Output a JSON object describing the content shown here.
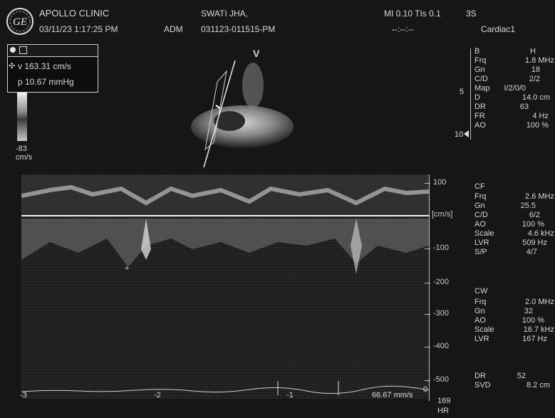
{
  "header": {
    "clinic": "APOLLO CLINIC",
    "datetime": "03/11/23 1:17:25 PM",
    "operator": "ADM",
    "patient_name": "SWATI JHA,",
    "patient_id": "031123-011515-PM",
    "mi_tis": "MI 0.10  TIs 0.1",
    "probe": "3S",
    "dashes": "--:--:--",
    "preset": "Cardiac1"
  },
  "measurement": {
    "velocity": "v  163.31 cm/s",
    "pressure": "p 10.67 mmHg"
  },
  "color_bar": {
    "value": "-83",
    "unit": "cm/s"
  },
  "image_marker": "V",
  "b_mode": {
    "header_b": "B",
    "header_h": "H",
    "rows": [
      {
        "k": "Frq",
        "v": "1.8 MHz"
      },
      {
        "k": "Gn",
        "v": "18"
      },
      {
        "k": "C/D",
        "v": "2/2"
      },
      {
        "k": "Map",
        "v": "I/2/0/0"
      },
      {
        "k": "D",
        "v": "14.0 cm"
      },
      {
        "k": "DR",
        "v": "63"
      },
      {
        "k": "FR",
        "v": "4 Hz"
      },
      {
        "k": "AO",
        "v": "100 %"
      }
    ],
    "depth_5": "5",
    "depth_10": "10"
  },
  "cf": {
    "title": "CF",
    "rows": [
      {
        "k": "Frq",
        "v": "2.6 MHz"
      },
      {
        "k": "Gn",
        "v": "25.5"
      },
      {
        "k": "C/D",
        "v": "6/2"
      },
      {
        "k": "AO",
        "v": "100 %"
      },
      {
        "k": "Scale",
        "v": "4.6 kHz"
      },
      {
        "k": "LVR",
        "v": "509 Hz"
      },
      {
        "k": "S/P",
        "v": "4/7"
      }
    ]
  },
  "cw": {
    "title": "CW",
    "rows": [
      {
        "k": "Frq",
        "v": "2.0 MHz"
      },
      {
        "k": "Gn",
        "v": "32"
      },
      {
        "k": "AO",
        "v": "100 %"
      },
      {
        "k": "Scale",
        "v": "16.7 kHz"
      },
      {
        "k": "LVR",
        "v": "167 Hz"
      }
    ]
  },
  "dr_svd": {
    "rows": [
      {
        "k": "DR",
        "v": "52"
      },
      {
        "k": "SVD",
        "v": "8.2 cm"
      }
    ]
  },
  "velocity_scale": {
    "labels": [
      "100",
      "[cm/s]",
      "-100",
      "-200",
      "-300",
      "-400",
      "-500"
    ]
  },
  "time_axis": {
    "labels": [
      "-3",
      "-2",
      "-1",
      "0"
    ],
    "sweep": "66.67 mm/s"
  },
  "hr": {
    "value": "169",
    "label": "HR"
  }
}
